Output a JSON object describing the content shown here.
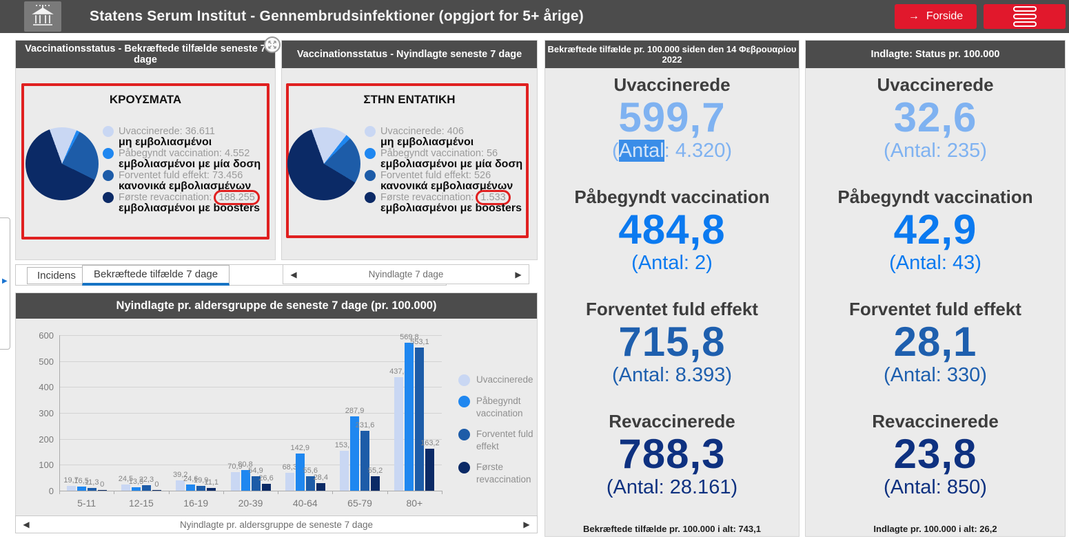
{
  "header": {
    "title": "Statens Serum Institut - Gennembrudsinfektioner (opgjort for 5+ årige)",
    "forside_button": "Forside"
  },
  "icons": {
    "forside_arrow": "→",
    "pager_prev": "◀",
    "pager_next": "▶",
    "drawer_expand": "▶"
  },
  "colors": {
    "accent_red": "#e1182c",
    "header_gray": "#4c4c4c",
    "annotation_red": "#e02020",
    "selection_blue": "#3a8de8"
  },
  "pie_panels": [
    {
      "header": "Vaccinationsstatus - Bekræftede tilfælde seneste 7 dage",
      "pie_title": "ΚΡΟΥΣΜΑΤΑ",
      "legend": [
        {
          "label_da": "Uvaccinerede",
          "value": "36.611",
          "value_num": 36611,
          "label_gr": "μη εμβολιασμένοι",
          "color": "#c9d7f3",
          "circled": false
        },
        {
          "label_da": "Påbegyndt vaccination",
          "value": "4.552",
          "value_num": 4552,
          "label_gr": "εμβολιασμένοι με μία δοση",
          "color": "#1f87f0",
          "circled": false
        },
        {
          "label_da": "Forventet fuld effekt",
          "value": "73.456",
          "value_num": 73456,
          "label_gr": "κανονικά εμβολιασμένων",
          "color": "#1d5ca8",
          "circled": false
        },
        {
          "label_da": "Første revaccination",
          "value": "188.255",
          "value_num": 188255,
          "label_gr": "εμβολιασμένοι με boosters",
          "color": "#0b2a66",
          "circled": true
        }
      ],
      "tabs": [
        "Incidens",
        "Bekræftede tilfælde 7 dage"
      ],
      "active_tab": 1
    },
    {
      "header": "Vaccinationsstatus - Nyindlagte seneste 7 dage",
      "pie_title": "ΣΤΗΝ ΕΝΤΑΤΙΚΗ",
      "legend": [
        {
          "label_da": "Uvaccinerede",
          "value": "406",
          "value_num": 406,
          "label_gr": "μη εμβολιασμένοι",
          "color": "#c9d7f3",
          "circled": false
        },
        {
          "label_da": "Påbegyndt vaccination",
          "value": "56",
          "value_num": 56,
          "label_gr": "εμβολιασμένοι με μία δοση",
          "color": "#1f87f0",
          "circled": false
        },
        {
          "label_da": "Forventet fuld effekt",
          "value": "526",
          "value_num": 526,
          "label_gr": "κανονικά εμβολιασμένων",
          "color": "#1d5ca8",
          "circled": false
        },
        {
          "label_da": "Første revaccination",
          "value": "1.533",
          "value_num": 1533,
          "label_gr": "εμβολιασμένοι με boosters",
          "color": "#0b2a66",
          "circled": true
        }
      ],
      "pager_label": "Nyindlagte 7 dage"
    }
  ],
  "stat_panels": [
    {
      "header": "Bekræftede tilfælde pr. 100.000 siden den 14 Φεβρουαρίου 2022",
      "items": [
        {
          "label": "Uvaccinerede",
          "number": "599,7",
          "antal_pre": "(",
          "antal_sel": "Antal",
          "antal_post": ": 4.320)",
          "color": "#7fb2f1"
        },
        {
          "label": "Påbegyndt vaccination",
          "number": "484,8",
          "antal_pre": "(Antal: 2)",
          "antal_sel": "",
          "antal_post": "",
          "color": "#0b7af0"
        },
        {
          "label": "Forventet fuld effekt",
          "number": "715,8",
          "antal_pre": "(Antal: 8.393)",
          "antal_sel": "",
          "antal_post": "",
          "color": "#1e5fae"
        },
        {
          "label": "Revaccinerede",
          "number": "788,3",
          "antal_pre": "(Antal: 28.161)",
          "antal_sel": "",
          "antal_post": "",
          "color": "#0e3180"
        }
      ],
      "footer": "Bekræftede tilfælde pr. 100.000 i alt: 743,1"
    },
    {
      "header": "Indlagte: Status pr. 100.000",
      "items": [
        {
          "label": "Uvaccinerede",
          "number": "32,6",
          "antal_pre": "(Antal: 235)",
          "antal_sel": "",
          "antal_post": "",
          "color": "#7fb2f1"
        },
        {
          "label": "Påbegyndt vaccination",
          "number": "42,9",
          "antal_pre": "(Antal: 43)",
          "antal_sel": "",
          "antal_post": "",
          "color": "#0b7af0"
        },
        {
          "label": "Forventet fuld effekt",
          "number": "28,1",
          "antal_pre": "(Antal: 330)",
          "antal_sel": "",
          "antal_post": "",
          "color": "#1e5fae"
        },
        {
          "label": "Revaccinerede",
          "number": "23,8",
          "antal_pre": "(Antal: 850)",
          "antal_sel": "",
          "antal_post": "",
          "color": "#0e3180"
        }
      ],
      "footer": "Indlagte pr. 100.000 i alt: 26,2"
    }
  ],
  "chart_data": {
    "type": "bar",
    "title": "Nyindlagte pr. aldersgruppe de seneste 7 dage (pr. 100.000)",
    "categories": [
      "5-11",
      "12-15",
      "16-19",
      "20-39",
      "40-64",
      "65-79",
      "80+"
    ],
    "series": [
      {
        "name": "Uvaccinerede",
        "color": "#c9d7f3",
        "values": [
          19.7,
          24.5,
          39.2,
          70.9,
          68.3,
          153.1,
          437.4
        ],
        "labels": [
          "19,7",
          "24,5",
          "39,2",
          "70,9",
          "68,3",
          "153,1",
          "437,4"
        ]
      },
      {
        "name": "Påbegyndt vaccination",
        "color": "#1f87f0",
        "values": [
          16.5,
          13.3,
          24.6,
          80.8,
          142.9,
          287.9,
          569.8
        ],
        "labels": [
          "16,5",
          "13,3",
          "24,6",
          "80,8",
          "142,9",
          "287,9",
          "569,8"
        ]
      },
      {
        "name": "Forventet fuld effekt",
        "color": "#1d5ca8",
        "values": [
          11.3,
          22.3,
          19.9,
          54.9,
          55.6,
          231.6,
          553.1
        ],
        "labels": [
          "11,3",
          "22,3",
          "19,9",
          "54,9",
          "55,6",
          "231,6",
          "553,1"
        ]
      },
      {
        "name": "Første revaccination",
        "color": "#0b2a66",
        "values": [
          0,
          0,
          11.1,
          26.6,
          28.4,
          55.2,
          163.2
        ],
        "labels": [
          "0",
          "0",
          "11,1",
          "26,6",
          "28,4",
          "55,2",
          "163,2"
        ]
      }
    ],
    "xlabel": "",
    "ylabel": "",
    "ylim": [
      0,
      600
    ],
    "yticks": [
      0,
      100,
      200,
      300,
      400,
      500,
      600
    ],
    "grid": true,
    "legend_position": "right",
    "pager_label": "Nyindlagte pr. aldersgruppe de seneste 7 dage"
  }
}
